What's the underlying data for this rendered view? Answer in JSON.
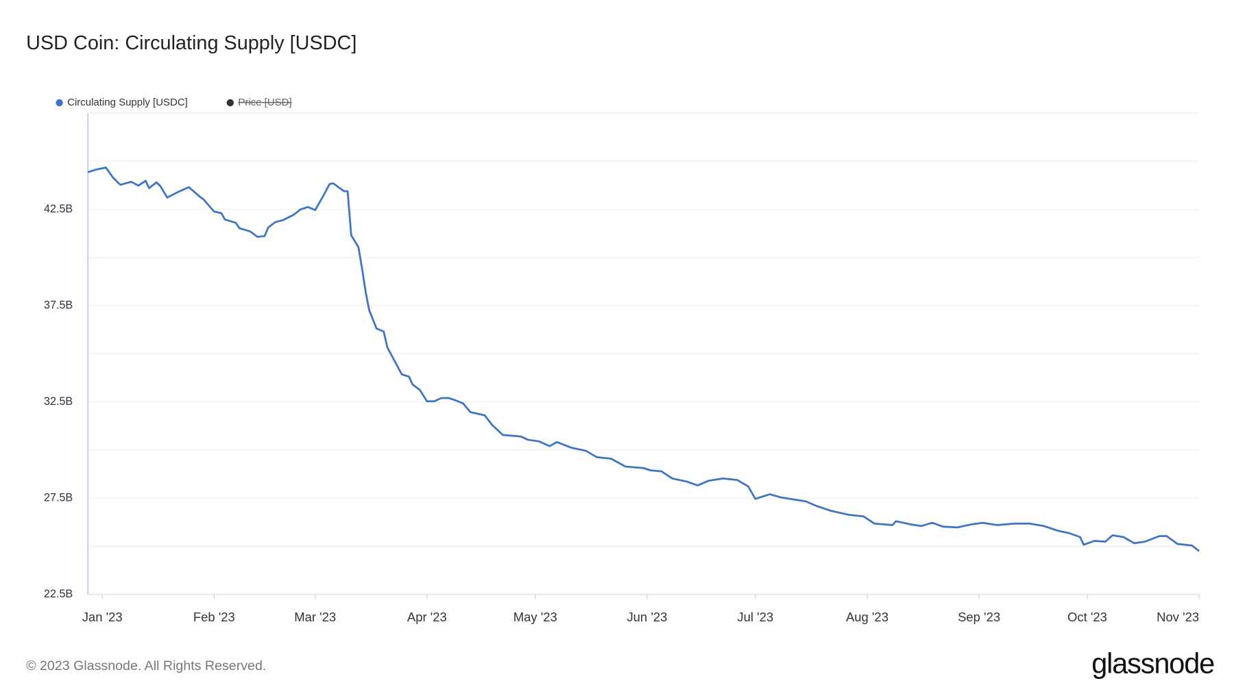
{
  "chart_data": {
    "type": "line",
    "title": "USD Coin: Circulating Supply [USDC]",
    "footer": "© 2023 Glassnode. All Rights Reserved.",
    "brand": "glassnode",
    "legend_position": "top-left",
    "grid": true,
    "xlim": [
      -4,
      304
    ],
    "xticks": [
      {
        "value": 0,
        "label": "Jan '23"
      },
      {
        "value": 31,
        "label": "Feb '23"
      },
      {
        "value": 59,
        "label": "Mar '23"
      },
      {
        "value": 90,
        "label": "Apr '23"
      },
      {
        "value": 120,
        "label": "May '23"
      },
      {
        "value": 151,
        "label": "Jun '23"
      },
      {
        "value": 181,
        "label": "Jul '23"
      },
      {
        "value": 212,
        "label": "Aug '23"
      },
      {
        "value": 243,
        "label": "Sep '23"
      },
      {
        "value": 273,
        "label": "Oct '23"
      },
      {
        "value": 304,
        "label": "Nov '23"
      }
    ],
    "ylim": [
      22500000000.0,
      47500000000.0
    ],
    "yticks": [
      {
        "value": 22500000000.0,
        "label": "22.5B"
      },
      {
        "value": 27500000000.0,
        "label": "27.5B"
      },
      {
        "value": 32500000000.0,
        "label": "32.5B"
      },
      {
        "value": 37500000000.0,
        "label": "37.5B"
      },
      {
        "value": 42500000000.0,
        "label": "42.5B"
      }
    ],
    "ygrid": [
      22500000000.0,
      25000000000.0,
      27500000000.0,
      30000000000.0,
      32500000000.0,
      35000000000.0,
      37500000000.0,
      40000000000.0,
      42500000000.0,
      45000000000.0,
      47500000000.0
    ],
    "x": [
      -4,
      -2,
      1,
      3,
      5,
      8,
      10,
      12,
      13,
      15,
      16,
      18,
      21,
      24,
      27,
      28,
      31,
      33,
      34,
      37,
      38,
      41,
      43,
      45,
      46,
      48,
      50,
      53,
      55,
      57,
      59,
      61,
      63,
      64,
      67,
      68,
      69,
      71,
      72,
      73,
      74,
      76,
      78,
      79,
      81,
      83,
      85,
      86,
      88,
      90,
      92,
      94,
      96,
      98,
      100,
      102,
      106,
      108,
      111,
      116,
      118,
      121,
      124,
      126,
      130,
      134,
      137,
      141,
      145,
      150,
      152,
      155,
      158,
      162,
      165,
      168,
      172,
      176,
      179,
      181,
      185,
      188,
      191,
      195,
      198,
      202,
      207,
      211,
      214,
      219,
      220,
      224,
      227,
      230,
      233,
      237,
      241,
      244,
      248,
      253,
      257,
      261,
      265,
      268,
      271,
      272,
      275,
      278,
      280,
      283,
      286,
      289,
      293,
      295,
      298,
      302,
      304
    ],
    "series": [
      {
        "name": "Circulating Supply [USDC]",
        "color": "#3d74c5",
        "visible": true,
        "values": [
          44430000000.0,
          44550000000.0,
          44670000000.0,
          44140000000.0,
          43770000000.0,
          43930000000.0,
          43730000000.0,
          43980000000.0,
          43600000000.0,
          43900000000.0,
          43730000000.0,
          43110000000.0,
          43400000000.0,
          43650000000.0,
          43160000000.0,
          43030000000.0,
          42380000000.0,
          42300000000.0,
          41970000000.0,
          41800000000.0,
          41520000000.0,
          41350000000.0,
          41070000000.0,
          41110000000.0,
          41560000000.0,
          41840000000.0,
          41930000000.0,
          42210000000.0,
          42500000000.0,
          42620000000.0,
          42460000000.0,
          43110000000.0,
          43810000000.0,
          43850000000.0,
          43440000000.0,
          43440000000.0,
          41150000000.0,
          40530000000.0,
          39430000000.0,
          38200000000.0,
          37250000000.0,
          36310000000.0,
          36150000000.0,
          35330000000.0,
          34630000000.0,
          33930000000.0,
          33810000000.0,
          33400000000.0,
          33120000000.0,
          32530000000.0,
          32530000000.0,
          32700000000.0,
          32700000000.0,
          32570000000.0,
          32420000000.0,
          31970000000.0,
          31800000000.0,
          31310000000.0,
          30780000000.0,
          30700000000.0,
          30530000000.0,
          30450000000.0,
          30200000000.0,
          30410000000.0,
          30120000000.0,
          29960000000.0,
          29630000000.0,
          29550000000.0,
          29140000000.0,
          29060000000.0,
          28940000000.0,
          28890000000.0,
          28520000000.0,
          28360000000.0,
          28160000000.0,
          28400000000.0,
          28520000000.0,
          28440000000.0,
          28110000000.0,
          27460000000.0,
          27700000000.0,
          27540000000.0,
          27450000000.0,
          27330000000.0,
          27090000000.0,
          26840000000.0,
          26630000000.0,
          26550000000.0,
          26180000000.0,
          26100000000.0,
          26300000000.0,
          26140000000.0,
          26050000000.0,
          26220000000.0,
          26020000000.0,
          25980000000.0,
          26140000000.0,
          26220000000.0,
          26100000000.0,
          26180000000.0,
          26180000000.0,
          26050000000.0,
          25800000000.0,
          25680000000.0,
          25480000000.0,
          25080000000.0,
          25280000000.0,
          25240000000.0,
          25570000000.0,
          25480000000.0,
          25160000000.0,
          25240000000.0,
          25530000000.0,
          25530000000.0,
          25120000000.0,
          25040000000.0,
          24750000000.0
        ]
      },
      {
        "name": "Price [USD]",
        "color": "#333333",
        "visible": false
      }
    ]
  }
}
